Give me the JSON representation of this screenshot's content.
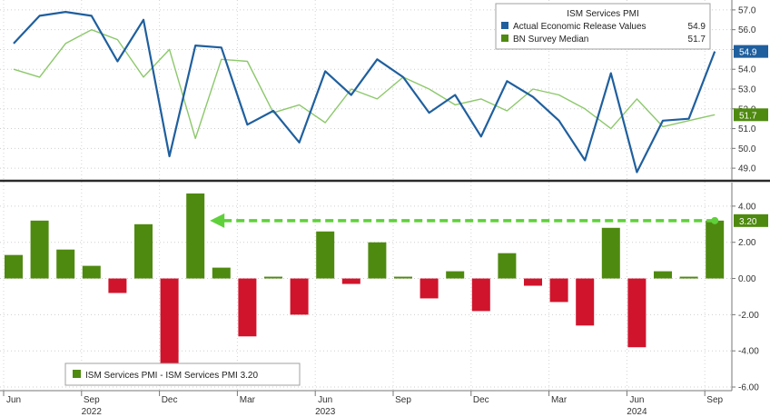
{
  "chart_data": [
    {
      "type": "line",
      "title": "ISM Services PMI",
      "x": [
        "2022-06",
        "2022-07",
        "2022-08",
        "2022-09",
        "2022-10",
        "2022-11",
        "2022-12",
        "2023-01",
        "2023-02",
        "2023-03",
        "2023-04",
        "2023-05",
        "2023-06",
        "2023-07",
        "2023-08",
        "2023-09",
        "2023-10",
        "2023-11",
        "2023-12",
        "2024-01",
        "2024-02",
        "2024-03",
        "2024-04",
        "2024-05",
        "2024-06",
        "2024-07",
        "2024-08",
        "2024-09"
      ],
      "series": [
        {
          "name": "Actual Economic Release Values",
          "last_label": "54.9",
          "color": "#1f5f9e",
          "values": [
            55.3,
            56.7,
            56.9,
            56.7,
            54.4,
            56.5,
            49.6,
            55.2,
            55.1,
            51.2,
            51.9,
            50.3,
            53.9,
            52.7,
            54.5,
            53.6,
            51.8,
            52.7,
            50.6,
            53.4,
            52.6,
            51.4,
            49.4,
            53.8,
            48.8,
            51.4,
            51.5,
            54.9
          ]
        },
        {
          "name": "BN Survey Median",
          "last_label": "51.7",
          "color": "#8cc86a",
          "values": [
            54.0,
            53.6,
            55.3,
            56.0,
            55.5,
            53.6,
            55.0,
            50.5,
            54.5,
            54.4,
            51.8,
            52.2,
            51.3,
            53.0,
            52.5,
            53.6,
            53.0,
            52.2,
            52.5,
            51.9,
            53.0,
            52.7,
            52.0,
            51.0,
            52.5,
            51.1,
            51.4,
            51.7
          ]
        }
      ],
      "ylim": [
        48.5,
        57.5
      ],
      "yticks": [
        "57.0",
        "56.0",
        "55.0",
        "54.0",
        "53.0",
        "52.0",
        "51.0",
        "50.0",
        "49.0"
      ]
    },
    {
      "type": "bar",
      "x": [
        "2022-06",
        "2022-07",
        "2022-08",
        "2022-09",
        "2022-10",
        "2022-11",
        "2022-12",
        "2023-01",
        "2023-02",
        "2023-03",
        "2023-04",
        "2023-05",
        "2023-06",
        "2023-07",
        "2023-08",
        "2023-09",
        "2023-10",
        "2023-11",
        "2023-12",
        "2024-01",
        "2024-02",
        "2024-03",
        "2024-04",
        "2024-05",
        "2024-06",
        "2024-07",
        "2024-08",
        "2024-09"
      ],
      "series": [
        {
          "name": "ISM Services PMI - ISM Services PMI 3.20",
          "last_label": "3.20",
          "values": [
            1.3,
            3.2,
            1.6,
            0.7,
            -0.8,
            3.0,
            -5.5,
            4.7,
            0.6,
            -3.2,
            0.1,
            -2.0,
            2.6,
            -0.3,
            2.0,
            0.1,
            -1.1,
            0.4,
            -1.8,
            1.4,
            -0.4,
            -1.3,
            -2.6,
            2.8,
            -3.8,
            0.4,
            0.1,
            3.2
          ]
        }
      ],
      "ylim": [
        -6.2,
        5.2
      ],
      "yticks": [
        "4.00",
        "2.00",
        "0.00",
        "-2.00",
        "-4.00",
        "-6.00"
      ],
      "positive_color": "#4f8a10",
      "negative_color": "#d0142c",
      "arrow_color": "#5fd03a"
    }
  ],
  "x_axis": {
    "month_labels": [
      {
        "label": "Jun",
        "index": 0
      },
      {
        "label": "Sep",
        "index": 3
      },
      {
        "label": "Dec",
        "index": 6
      },
      {
        "label": "Mar",
        "index": 9
      },
      {
        "label": "Jun",
        "index": 12
      },
      {
        "label": "Sep",
        "index": 15
      },
      {
        "label": "Dec",
        "index": 18
      },
      {
        "label": "Mar",
        "index": 21
      },
      {
        "label": "Jun",
        "index": 24
      },
      {
        "label": "Sep",
        "index": 27
      }
    ],
    "year_labels": [
      {
        "label": "2022",
        "index": 3
      },
      {
        "label": "2023",
        "index": 12
      },
      {
        "label": "2024",
        "index": 24
      }
    ]
  },
  "legend_top": {
    "title": "ISM Services PMI",
    "items": [
      {
        "label": "Actual Economic Release Values",
        "value": "54.9",
        "color": "#1f5f9e"
      },
      {
        "label": "BN Survey Median",
        "value": "51.7",
        "color": "#4f8a10"
      }
    ]
  },
  "legend_bottom": {
    "label": "ISM Services PMI - ISM Services PMI 3.20",
    "color": "#4f8a10"
  }
}
